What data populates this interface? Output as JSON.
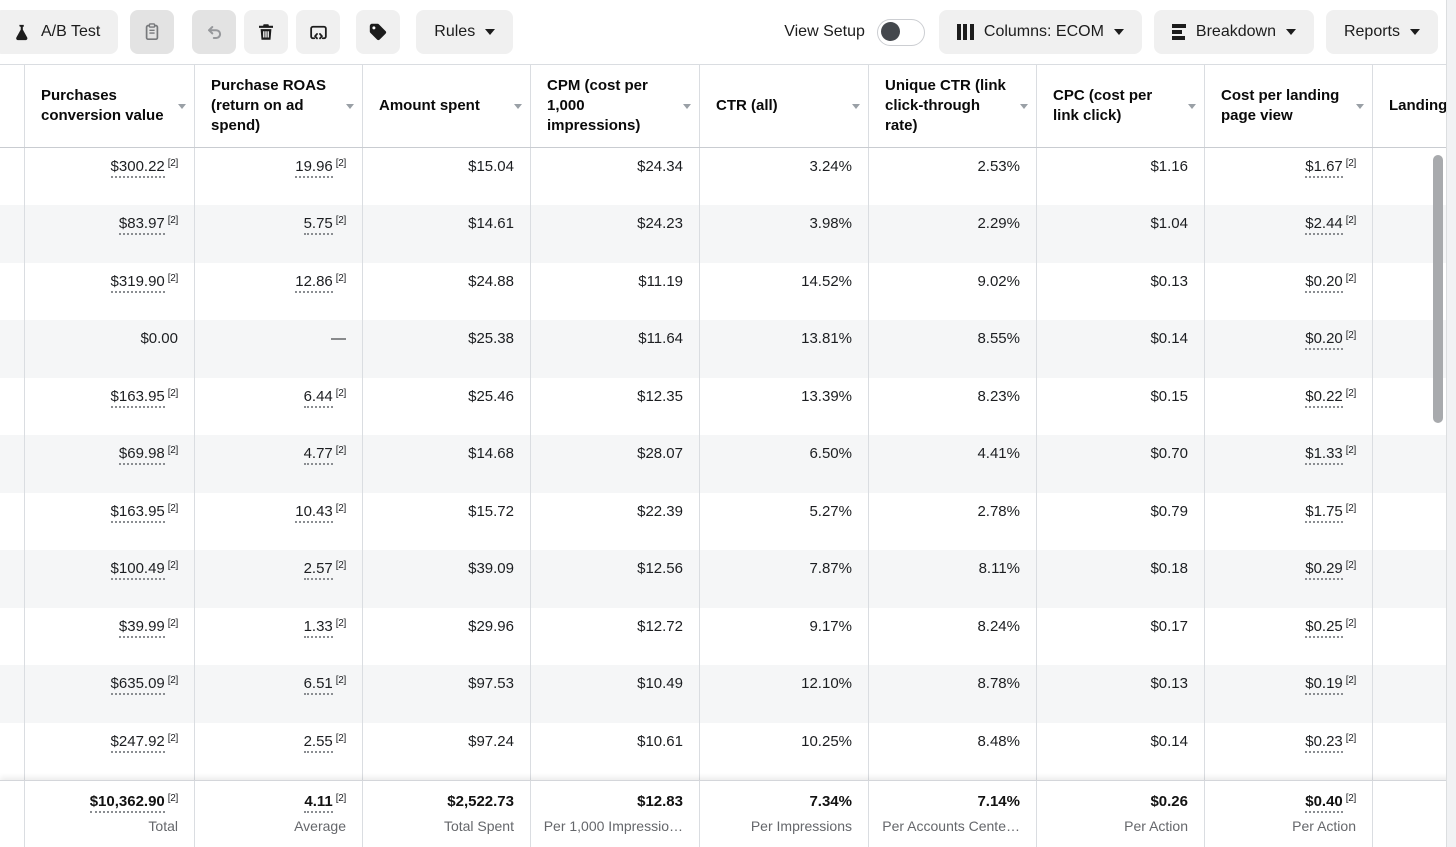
{
  "toolbar": {
    "ab_test_label": "A/B Test",
    "rules_label": "Rules",
    "view_setup_label": "View Setup",
    "view_setup_state": "off",
    "columns_label": "Columns: ECOM",
    "breakdown_label": "Breakdown",
    "reports_label": "Reports",
    "icons": [
      "flask-icon",
      "clipboard-icon",
      "undo-icon",
      "trash-icon",
      "embed-code-icon",
      "tag-icon",
      "columns-icon",
      "breakdown-icon",
      "caret-down-icon"
    ]
  },
  "colors": {
    "row_alt": "#f5f6f7",
    "column_border": "#dadde1",
    "footer_label_gray": "#65676b",
    "toggle_knob": "#44484d",
    "scrollbar_thumb": "#a8aaad",
    "button_bg": "#f0f0f0",
    "button_bg_pressed": "#e3e3e3"
  },
  "table": {
    "columns": [
      {
        "label": "Purchases conversion value",
        "sortable": true
      },
      {
        "label": "Purchase ROAS (return on ad spend)",
        "sortable": true
      },
      {
        "label": "Amount spent",
        "sortable": true
      },
      {
        "label": "CPM (cost per 1,000 impressions)",
        "sortable": true
      },
      {
        "label": "CTR (all)",
        "sortable": true
      },
      {
        "label": "Unique CTR (link click-through rate)",
        "sortable": true
      },
      {
        "label": "CPC (cost per link click)",
        "sortable": true
      },
      {
        "label": "Cost per landing page view",
        "sortable": true
      },
      {
        "label": "Landing page views",
        "sortable": false
      }
    ],
    "rows": [
      {
        "cells": [
          {
            "value": "$300.22",
            "footnote": "[2]",
            "underlined": true
          },
          {
            "value": "19.96",
            "footnote": "[2]",
            "underlined": true
          },
          {
            "value": "$15.04"
          },
          {
            "value": "$24.34"
          },
          {
            "value": "3.24%"
          },
          {
            "value": "2.53%"
          },
          {
            "value": "$1.16"
          },
          {
            "value": "$1.67",
            "footnote": "[2]",
            "underlined": true
          },
          {
            "value": ""
          }
        ]
      },
      {
        "cells": [
          {
            "value": "$83.97",
            "footnote": "[2]",
            "underlined": true
          },
          {
            "value": "5.75",
            "footnote": "[2]",
            "underlined": true
          },
          {
            "value": "$14.61"
          },
          {
            "value": "$24.23"
          },
          {
            "value": "3.98%"
          },
          {
            "value": "2.29%"
          },
          {
            "value": "$1.04"
          },
          {
            "value": "$2.44",
            "footnote": "[2]",
            "underlined": true
          },
          {
            "value": ""
          }
        ]
      },
      {
        "cells": [
          {
            "value": "$319.90",
            "footnote": "[2]",
            "underlined": true
          },
          {
            "value": "12.86",
            "footnote": "[2]",
            "underlined": true
          },
          {
            "value": "$24.88"
          },
          {
            "value": "$11.19"
          },
          {
            "value": "14.52%"
          },
          {
            "value": "9.02%"
          },
          {
            "value": "$0.13"
          },
          {
            "value": "$0.20",
            "footnote": "[2]",
            "underlined": true
          },
          {
            "value": ""
          }
        ]
      },
      {
        "cells": [
          {
            "value": "$0.00"
          },
          {
            "value": "—"
          },
          {
            "value": "$25.38"
          },
          {
            "value": "$11.64"
          },
          {
            "value": "13.81%"
          },
          {
            "value": "8.55%"
          },
          {
            "value": "$0.14"
          },
          {
            "value": "$0.20",
            "footnote": "[2]",
            "underlined": true
          },
          {
            "value": ""
          }
        ]
      },
      {
        "cells": [
          {
            "value": "$163.95",
            "footnote": "[2]",
            "underlined": true
          },
          {
            "value": "6.44",
            "footnote": "[2]",
            "underlined": true
          },
          {
            "value": "$25.46"
          },
          {
            "value": "$12.35"
          },
          {
            "value": "13.39%"
          },
          {
            "value": "8.23%"
          },
          {
            "value": "$0.15"
          },
          {
            "value": "$0.22",
            "footnote": "[2]",
            "underlined": true
          },
          {
            "value": ""
          }
        ]
      },
      {
        "cells": [
          {
            "value": "$69.98",
            "footnote": "[2]",
            "underlined": true
          },
          {
            "value": "4.77",
            "footnote": "[2]",
            "underlined": true
          },
          {
            "value": "$14.68"
          },
          {
            "value": "$28.07"
          },
          {
            "value": "6.50%"
          },
          {
            "value": "4.41%"
          },
          {
            "value": "$0.70"
          },
          {
            "value": "$1.33",
            "footnote": "[2]",
            "underlined": true
          },
          {
            "value": ""
          }
        ]
      },
      {
        "cells": [
          {
            "value": "$163.95",
            "footnote": "[2]",
            "underlined": true
          },
          {
            "value": "10.43",
            "footnote": "[2]",
            "underlined": true
          },
          {
            "value": "$15.72"
          },
          {
            "value": "$22.39"
          },
          {
            "value": "5.27%"
          },
          {
            "value": "2.78%"
          },
          {
            "value": "$0.79"
          },
          {
            "value": "$1.75",
            "footnote": "[2]",
            "underlined": true
          },
          {
            "value": ""
          }
        ]
      },
      {
        "cells": [
          {
            "value": "$100.49",
            "footnote": "[2]",
            "underlined": true
          },
          {
            "value": "2.57",
            "footnote": "[2]",
            "underlined": true
          },
          {
            "value": "$39.09"
          },
          {
            "value": "$12.56"
          },
          {
            "value": "7.87%"
          },
          {
            "value": "8.11%"
          },
          {
            "value": "$0.18"
          },
          {
            "value": "$0.29",
            "footnote": "[2]",
            "underlined": true
          },
          {
            "value": ""
          }
        ]
      },
      {
        "cells": [
          {
            "value": "$39.99",
            "footnote": "[2]",
            "underlined": true
          },
          {
            "value": "1.33",
            "footnote": "[2]",
            "underlined": true
          },
          {
            "value": "$29.96"
          },
          {
            "value": "$12.72"
          },
          {
            "value": "9.17%"
          },
          {
            "value": "8.24%"
          },
          {
            "value": "$0.17"
          },
          {
            "value": "$0.25",
            "footnote": "[2]",
            "underlined": true
          },
          {
            "value": ""
          }
        ]
      },
      {
        "cells": [
          {
            "value": "$635.09",
            "footnote": "[2]",
            "underlined": true
          },
          {
            "value": "6.51",
            "footnote": "[2]",
            "underlined": true
          },
          {
            "value": "$97.53"
          },
          {
            "value": "$10.49"
          },
          {
            "value": "12.10%"
          },
          {
            "value": "8.78%"
          },
          {
            "value": "$0.13"
          },
          {
            "value": "$0.19",
            "footnote": "[2]",
            "underlined": true
          },
          {
            "value": ""
          }
        ]
      },
      {
        "cells": [
          {
            "value": "$247.92",
            "footnote": "[2]",
            "underlined": true
          },
          {
            "value": "2.55",
            "footnote": "[2]",
            "underlined": true
          },
          {
            "value": "$97.24"
          },
          {
            "value": "$10.61"
          },
          {
            "value": "10.25%"
          },
          {
            "value": "8.48%"
          },
          {
            "value": "$0.14"
          },
          {
            "value": "$0.23",
            "footnote": "[2]",
            "underlined": true
          },
          {
            "value": ""
          }
        ]
      }
    ],
    "footer": {
      "cells": [
        {
          "value": "$10,362.90",
          "footnote": "[2]",
          "underlined": true,
          "label": "Total"
        },
        {
          "value": "4.11",
          "footnote": "[2]",
          "underlined": true,
          "label": "Average"
        },
        {
          "value": "$2,522.73",
          "label": "Total Spent"
        },
        {
          "value": "$12.83",
          "label": "Per 1,000 Impressio…"
        },
        {
          "value": "7.34%",
          "label": "Per Impressions"
        },
        {
          "value": "7.14%",
          "label": "Per Accounts Cente…"
        },
        {
          "value": "$0.26",
          "label": "Per Action"
        },
        {
          "value": "$0.40",
          "footnote": "[2]",
          "underlined": true,
          "label": "Per Action"
        },
        {
          "value": "",
          "label": ""
        }
      ]
    }
  }
}
